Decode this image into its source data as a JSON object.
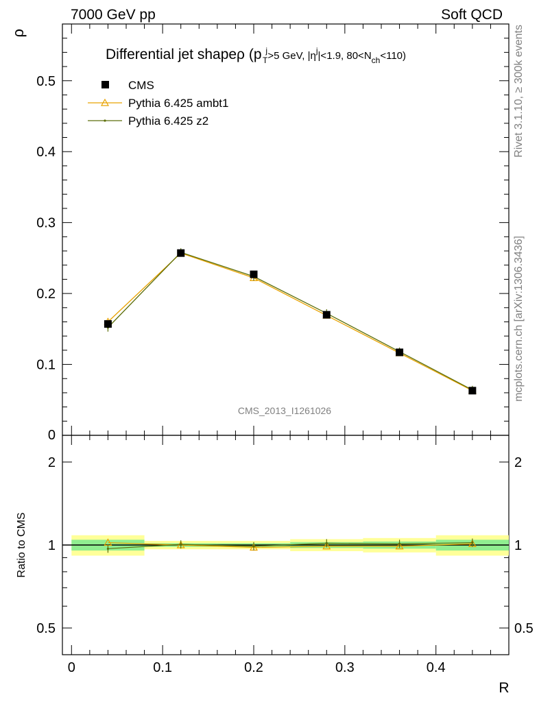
{
  "header": {
    "left": "7000 GeV pp",
    "right": "Soft QCD"
  },
  "side": {
    "rivet": "Rivet 3.1.10, ≥ 300k events",
    "mcplots": "mcplots.cern.ch [arXiv:1306.3436]"
  },
  "main_plot": {
    "title": "Differential jet shapeρ (p",
    "title_parts": {
      "a": "Differential jet shapeρ (p",
      "pt_sub": "T",
      "pt_sup": "j",
      "b": ">5 GeV, |η",
      "eta_sup": "j",
      "c": "|<1.9, 80<N",
      "n_sub": "ch",
      "d": "<110)"
    },
    "ylabel": "ρ",
    "watermark": "CMS_2013_I1261026",
    "yticks": [
      "0.1",
      "0.2",
      "0.3",
      "0.4",
      "0.5"
    ],
    "y_zero_label": "0"
  },
  "ratio_plot": {
    "ylabel": "Ratio to CMS",
    "yticks": [
      "0.5",
      "1",
      "2"
    ],
    "xticks": [
      "0",
      "0.1",
      "0.2",
      "0.3",
      "0.4"
    ],
    "xlabel": "R"
  },
  "legend": [
    {
      "name": "CMS",
      "color": "#000000",
      "marker": "square"
    },
    {
      "name": "Pythia 6.425 ambt1",
      "color": "#e8a200",
      "marker": "triangle"
    },
    {
      "name": "Pythia 6.425 z2",
      "color": "#5c6e0a",
      "marker": "dot"
    }
  ],
  "chart_data": {
    "type": "line",
    "xlabel": "R",
    "ylabel": "ρ",
    "xlim": [
      -0.01,
      0.48
    ],
    "ylim": [
      0,
      0.58
    ],
    "ratio_ylim_log": [
      0.4,
      2.5
    ],
    "bins": [
      [
        0.0,
        0.08
      ],
      [
        0.08,
        0.16
      ],
      [
        0.16,
        0.24
      ],
      [
        0.24,
        0.32
      ],
      [
        0.32,
        0.4
      ],
      [
        0.4,
        0.48
      ]
    ],
    "x": [
      0.04,
      0.12,
      0.2,
      0.28,
      0.36,
      0.44
    ],
    "series": [
      {
        "name": "CMS",
        "values": [
          0.157,
          0.257,
          0.227,
          0.17,
          0.117,
          0.063
        ]
      },
      {
        "name": "Pythia 6.425 ambt1",
        "values": [
          0.16,
          0.257,
          0.222,
          0.169,
          0.116,
          0.063
        ]
      },
      {
        "name": "Pythia 6.425 z2",
        "values": [
          0.152,
          0.258,
          0.224,
          0.172,
          0.118,
          0.064
        ]
      }
    ],
    "ratio": [
      {
        "name": "Pythia 6.425 ambt1",
        "values": [
          1.02,
          1.0,
          0.98,
          0.99,
          0.99,
          1.01
        ]
      },
      {
        "name": "Pythia 6.425 z2",
        "values": [
          0.97,
          1.005,
          0.99,
          1.015,
          1.01,
          1.02
        ]
      }
    ],
    "uncertainty_inner": [
      [
        0.955,
        1.045
      ],
      [
        0.985,
        1.015
      ],
      [
        0.985,
        1.015
      ],
      [
        0.975,
        1.025
      ],
      [
        0.97,
        1.03
      ],
      [
        0.955,
        1.045
      ]
    ],
    "uncertainty_outer": [
      [
        0.915,
        1.085
      ],
      [
        0.965,
        1.035
      ],
      [
        0.965,
        1.035
      ],
      [
        0.95,
        1.05
      ],
      [
        0.94,
        1.06
      ],
      [
        0.915,
        1.085
      ]
    ],
    "band_colors": {
      "inner": "#90ee90",
      "outer": "#ffff99"
    }
  }
}
